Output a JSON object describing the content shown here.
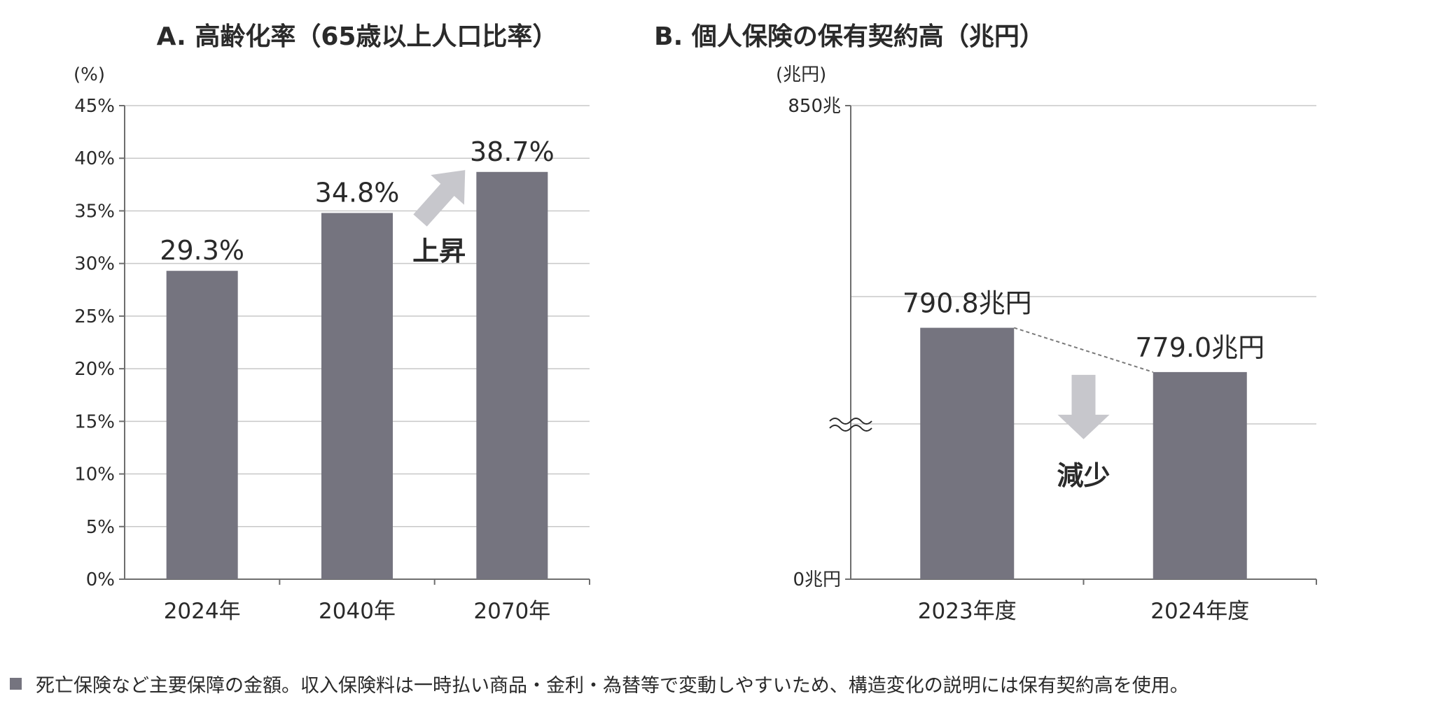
{
  "colors": {
    "bar": "#75747f",
    "arrow": "#c7c7cc",
    "text": "#2a2a2a",
    "grid": "#c8c8c8",
    "axis": "#6e6e6e"
  },
  "chart_data": [
    {
      "type": "bar",
      "title": "A. 高齢化率（65歳以上人口比率）",
      "ylabel": "(%)",
      "categories": [
        "2024年",
        "2040年",
        "2070年"
      ],
      "values": [
        29.3,
        34.8,
        38.7
      ],
      "value_labels": [
        "29.3%",
        "34.8%",
        "38.7%"
      ],
      "ylim": [
        0,
        45
      ],
      "yticks": [
        0,
        5,
        10,
        15,
        20,
        25,
        30,
        35,
        40,
        45
      ],
      "ytick_labels": [
        "0%",
        "5%",
        "10%",
        "15%",
        "20%",
        "25%",
        "30%",
        "35%",
        "40%",
        "45%"
      ],
      "grid": true,
      "annotation": {
        "text": "上昇",
        "arrow": "up-right",
        "icon": "arrow-up-right-icon"
      }
    },
    {
      "type": "bar",
      "title": "B. 個人保険の保有契約高（兆円）",
      "ylabel": "(兆円)",
      "categories": [
        "2023年度",
        "2024年度"
      ],
      "values": [
        790.8,
        779.0
      ],
      "value_labels": [
        "790.8兆円",
        "779.0兆円"
      ],
      "ylim": [
        0,
        850
      ],
      "axis_break": true,
      "ytick_labels": [
        "0兆円",
        "850兆"
      ],
      "grid": true,
      "trend_line": "dashed",
      "annotation": {
        "text": "減少",
        "arrow": "down",
        "icon": "arrow-down-icon"
      }
    }
  ],
  "footnote": {
    "text": "死亡保険など主要保障の金額。収入保険料は一時払い商品・金利・為替等で変動しやすいため、構造変化の説明には保有契約高を使用。"
  }
}
